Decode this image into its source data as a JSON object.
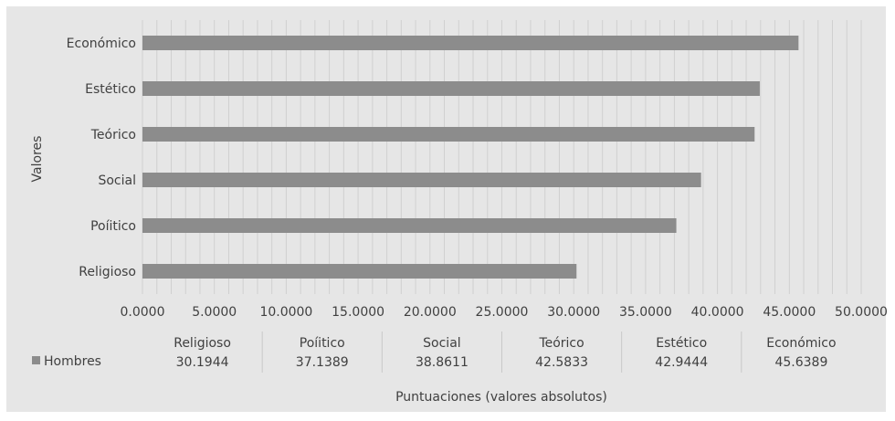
{
  "chart_data": {
    "type": "bar",
    "orientation": "horizontal",
    "title": "",
    "xlabel": "Puntuaciones (valores absolutos)",
    "ylabel": "Valores",
    "xlim": [
      0,
      50
    ],
    "x_ticks": [
      "0.0000",
      "5.0000",
      "10.0000",
      "15.0000",
      "20.0000",
      "25.0000",
      "30.0000",
      "35.0000",
      "40.0000",
      "45.0000",
      "50.0000"
    ],
    "categories": [
      "Religioso",
      "Poíitico",
      "Social",
      "Teórico",
      "Estético",
      "Económico"
    ],
    "series": [
      {
        "name": "Hombres",
        "values": [
          30.1944,
          37.1389,
          38.8611,
          42.5833,
          42.9444,
          45.6389
        ],
        "value_labels": [
          "30.1944",
          "37.1389",
          "38.8611",
          "42.5833",
          "42.9444",
          "45.6389"
        ],
        "color": "#8c8c8c"
      }
    ],
    "grid": true,
    "legend": "data-table-left",
    "data_table": true,
    "background_color": "#e6e6e6",
    "gridline_color": "#d0d0d0",
    "text_color": "#404040"
  }
}
